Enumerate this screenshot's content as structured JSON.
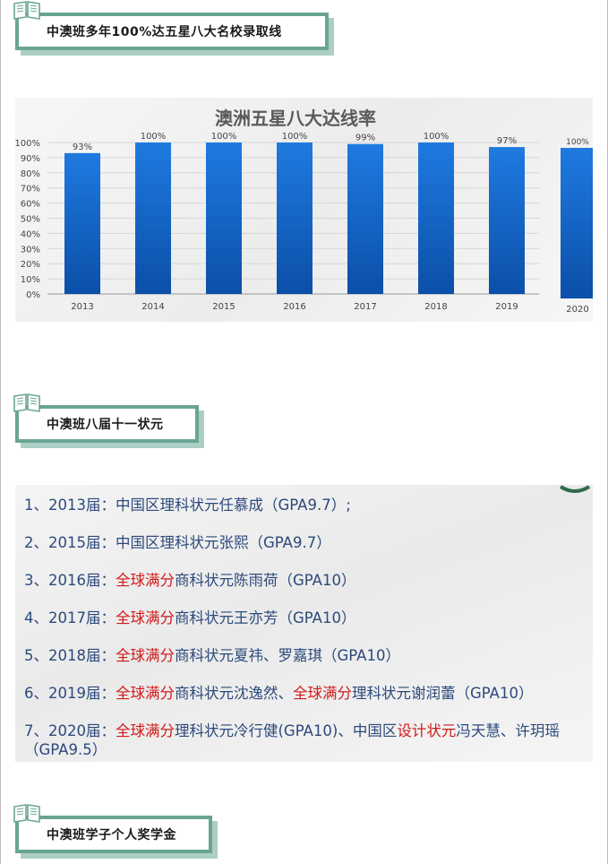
{
  "headings": {
    "h1": "中澳班多年100%达五星八大名校录取线",
    "h2": "中澳班八届十一状元",
    "h3": "中澳班学子个人奖学金"
  },
  "chart_data": {
    "type": "bar",
    "title": "澳洲五星八大达线率",
    "categories": [
      "2013",
      "2014",
      "2015",
      "2016",
      "2017",
      "2018",
      "2019",
      "2020"
    ],
    "values": [
      93,
      100,
      100,
      100,
      99,
      100,
      97,
      100
    ],
    "value_labels": [
      "93%",
      "100%",
      "100%",
      "100%",
      "99%",
      "100%",
      "97%",
      "100%"
    ],
    "ylim": [
      0,
      100
    ],
    "yticks": [
      "0%",
      "10%",
      "20%",
      "30%",
      "40%",
      "50%",
      "60%",
      "70%",
      "80%",
      "90%",
      "100%"
    ],
    "grid": true,
    "bar_color": "#1565c8"
  },
  "champions": [
    {
      "num": "1、2013届：",
      "segments": [
        {
          "text": "中国区理科状元任慕成（GPA9.7）;",
          "red": false
        }
      ]
    },
    {
      "num": "2、2015届：",
      "segments": [
        {
          "text": "中国区理科状元张熙（GPA9.7）",
          "red": false
        }
      ]
    },
    {
      "num": "3、2016届：",
      "segments": [
        {
          "text": "全球满分",
          "red": true
        },
        {
          "text": "商科状元陈雨荷（GPA10）",
          "red": false
        }
      ]
    },
    {
      "num": "4、2017届：",
      "segments": [
        {
          "text": "全球满分",
          "red": true
        },
        {
          "text": "商科状元王亦芳（GPA10）",
          "red": false
        }
      ]
    },
    {
      "num": "5、2018届：",
      "segments": [
        {
          "text": "全球满分",
          "red": true
        },
        {
          "text": "商科状元夏祎、罗嘉琪（GPA10）",
          "red": false
        }
      ]
    },
    {
      "num": "6、2019届：",
      "segments": [
        {
          "text": "全球满分",
          "red": true
        },
        {
          "text": "商科状元沈逸然、",
          "red": false
        },
        {
          "text": "全球满分",
          "red": true
        },
        {
          "text": "理科状元谢润蕾（GPA10）",
          "red": false
        }
      ]
    },
    {
      "num": "7、2020届：",
      "segments": [
        {
          "text": "全球满分",
          "red": true
        },
        {
          "text": "理科状元冷行健(GPA10)、中国区",
          "red": false
        },
        {
          "text": "设计状元",
          "red": true
        },
        {
          "text": "冯天慧、许玥瑶（GPA9.5）",
          "red": false
        }
      ]
    }
  ],
  "colors": {
    "accent": "#6aa594",
    "text_blue": "#2c4a7c",
    "highlight_red": "#d11a1a"
  },
  "icons": {
    "heading": "book-icon"
  }
}
